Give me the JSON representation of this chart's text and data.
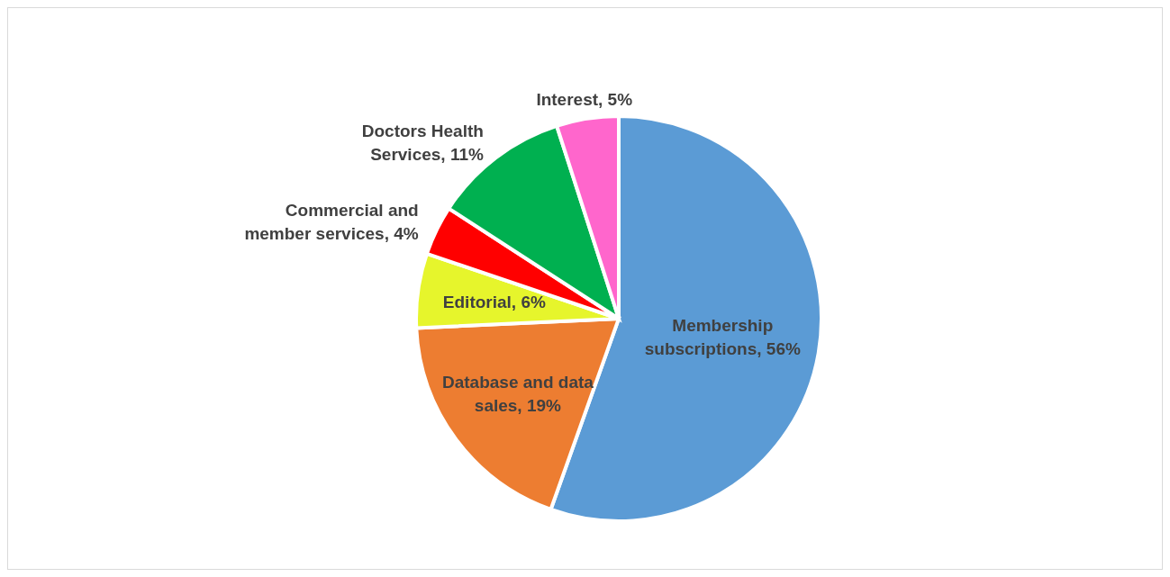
{
  "chart_data": {
    "type": "pie",
    "categories": [
      "Membership subscriptions",
      "Database and data sales",
      "Editorial",
      "Commercial and member services",
      "Doctors Health Services",
      "Interest"
    ],
    "values": [
      56,
      19,
      6,
      4,
      11,
      5
    ],
    "value_labels": [
      "56%",
      "19%",
      "6%",
      "4%",
      "11%",
      "5%"
    ],
    "colors": [
      "#5b9bd5",
      "#ed7d31",
      "#e6f52c",
      "#ff0000",
      "#00b050",
      "#ff66cc"
    ],
    "legend": false
  }
}
